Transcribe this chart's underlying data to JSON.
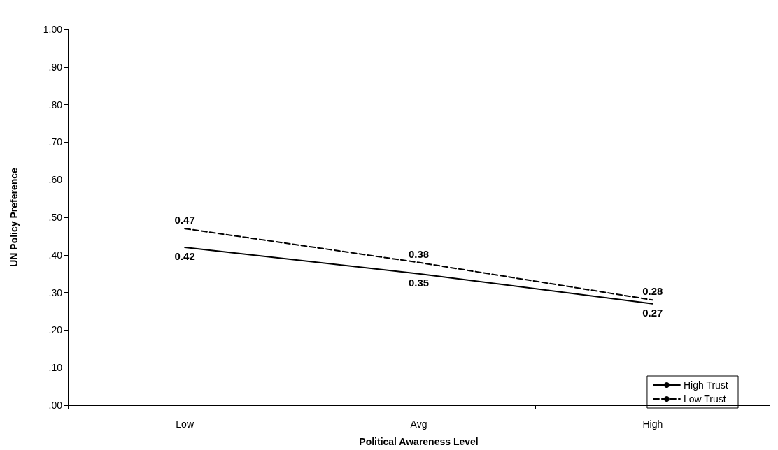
{
  "chart_data": {
    "type": "line",
    "xlabel": "Political Awareness Level",
    "ylabel": "UN Policy Preference",
    "categories": [
      "Low",
      "Avg",
      "High"
    ],
    "series": [
      {
        "name": "High Trust",
        "color": "#000000",
        "line_style": "solid",
        "values": [
          0.42,
          0.35,
          0.27
        ]
      },
      {
        "name": "Low Trust",
        "color": "#000000",
        "line_style": "dashed",
        "values": [
          0.47,
          0.38,
          0.28
        ]
      }
    ],
    "ylim": [
      0,
      1
    ],
    "yticks": [
      {
        "value": 0,
        "label": ".00"
      },
      {
        "value": 0.1,
        "label": ".10"
      },
      {
        "value": 0.2,
        "label": ".20"
      },
      {
        "value": 0.3,
        "label": ".30"
      },
      {
        "value": 0.4,
        "label": ".40"
      },
      {
        "value": 0.5,
        "label": ".50"
      },
      {
        "value": 0.6,
        "label": ".60"
      },
      {
        "value": 0.7,
        "label": ".70"
      },
      {
        "value": 0.8,
        "label": ".80"
      },
      {
        "value": 0.9,
        "label": ".90"
      },
      {
        "value": 1,
        "label": "1.00"
      }
    ],
    "grid": false,
    "legend": "bottom right",
    "marker": "none",
    "data_labels": true
  }
}
